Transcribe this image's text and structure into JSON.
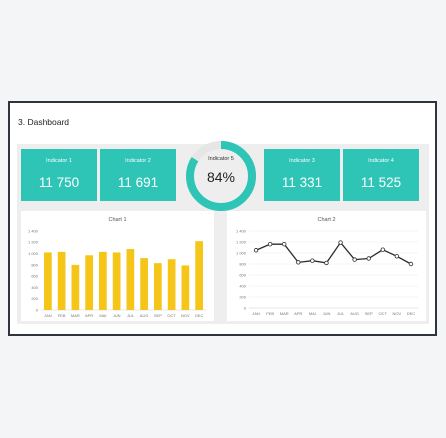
{
  "page_title": "3. Dashboard",
  "kpis": [
    {
      "label": "Indicator 1",
      "value": "11 750"
    },
    {
      "label": "Indicator 2",
      "value": "11 691"
    },
    {
      "label": "Indicator 3",
      "value": "11 331"
    },
    {
      "label": "Indicator 4",
      "value": "11 525"
    }
  ],
  "donut": {
    "label": "Indicator 5",
    "value_text": "84%",
    "percent": 84,
    "color": "#2ec4b6",
    "track_color": "#e6e6e6"
  },
  "colors": {
    "kpi": "#2ec4b6",
    "bar": "#f5c518",
    "line": "#2b2b2b",
    "frame": "#2e3440"
  },
  "chart_data": [
    {
      "type": "bar",
      "title": "Chart 1",
      "categories": [
        "JAN",
        "FEB",
        "MAR",
        "APR",
        "MAI",
        "JUN",
        "JUL",
        "AUG",
        "SEP",
        "OCT",
        "NOV",
        "DEC"
      ],
      "values": [
        1020,
        1030,
        800,
        970,
        1030,
        1020,
        1080,
        920,
        830,
        900,
        790,
        1220
      ],
      "ylim": [
        0,
        1400
      ],
      "yticks": [
        "0",
        "200",
        "400",
        "600",
        "800",
        "1 000",
        "1 200",
        "1 400"
      ],
      "grid": false
    },
    {
      "type": "line",
      "title": "Chart 2",
      "categories": [
        "JAN",
        "FEB",
        "MAR",
        "APR",
        "MAI",
        "JUN",
        "JUL",
        "AUG",
        "SEP",
        "OCT",
        "NOV",
        "DEC"
      ],
      "values": [
        1050,
        1160,
        1160,
        830,
        860,
        820,
        1190,
        880,
        900,
        1060,
        940,
        800
      ],
      "ylim": [
        0,
        1400
      ],
      "yticks": [
        "0",
        "200",
        "400",
        "600",
        "800",
        "1 000",
        "1 200",
        "1 400"
      ],
      "grid": true
    }
  ]
}
